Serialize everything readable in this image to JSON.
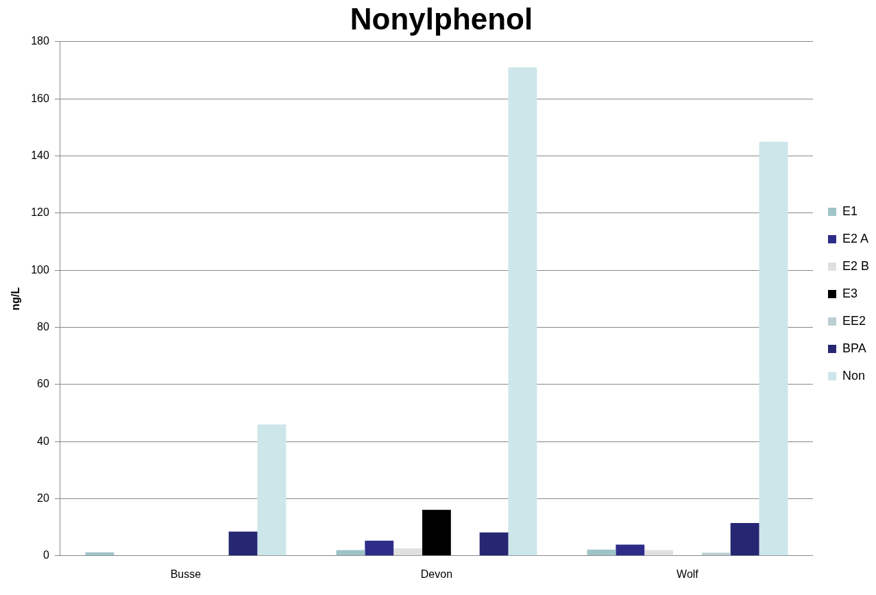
{
  "chart_data": {
    "type": "bar",
    "title": "Nonylphenol",
    "ylabel": "ng/L",
    "categories": [
      "Busse",
      "Devon",
      "Wolf"
    ],
    "series": [
      {
        "name": "E1",
        "color": "#9fc4c8",
        "values": [
          1.2,
          2.0,
          2.2
        ]
      },
      {
        "name": "E2 A",
        "color": "#2e2c88",
        "values": [
          0,
          5.3,
          3.9
        ]
      },
      {
        "name": "E2 B",
        "color": "#e0e0e0",
        "values": [
          0,
          2.6,
          2.0
        ]
      },
      {
        "name": "E3",
        "color": "#000000",
        "values": [
          0,
          16.1,
          0
        ]
      },
      {
        "name": "EE2",
        "color": "#bcd0d4",
        "values": [
          0,
          0,
          1.1
        ]
      },
      {
        "name": "BPA",
        "color": "#262673",
        "values": [
          8.5,
          8.2,
          11.5
        ]
      },
      {
        "name": "Non",
        "color": "#cce6ea",
        "values": [
          46,
          171,
          145
        ]
      }
    ],
    "ylim": [
      0,
      180
    ],
    "yticks": [
      0,
      20,
      40,
      60,
      80,
      100,
      120,
      140,
      160,
      180
    ],
    "grid": "y",
    "legend": "right"
  }
}
